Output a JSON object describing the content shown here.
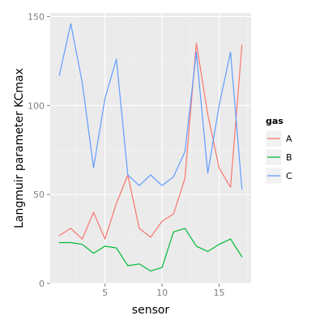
{
  "chart_data": {
    "type": "line",
    "xlabel": "sensor",
    "ylabel": "Langmuir parameter KCmax",
    "xlim": [
      0.2,
      17.8
    ],
    "ylim": [
      0,
      152
    ],
    "x_ticks": [
      5,
      10,
      15
    ],
    "y_ticks": [
      0,
      50,
      100,
      150
    ],
    "x": [
      1,
      2,
      3,
      4,
      5,
      6,
      7,
      8,
      9,
      10,
      11,
      12,
      13,
      14,
      15,
      16,
      17
    ],
    "grid": true,
    "legend": {
      "title": "gas",
      "placement": "right"
    },
    "series": [
      {
        "name": "A",
        "color": "#f8766d",
        "values": [
          27,
          31,
          25,
          40,
          25,
          45,
          61,
          31,
          26,
          35,
          39,
          59,
          135,
          95,
          65,
          54,
          134
        ]
      },
      {
        "name": "B",
        "color": "#00ba38",
        "values": [
          23,
          23,
          22,
          17,
          21,
          20,
          10,
          11,
          7,
          9,
          29,
          31,
          21,
          18,
          22,
          25,
          15
        ]
      },
      {
        "name": "C",
        "color": "#619cff",
        "values": [
          117,
          146,
          113,
          65,
          104,
          126,
          61,
          55,
          61,
          55,
          60,
          74,
          130,
          62,
          100,
          130,
          53
        ]
      }
    ]
  }
}
